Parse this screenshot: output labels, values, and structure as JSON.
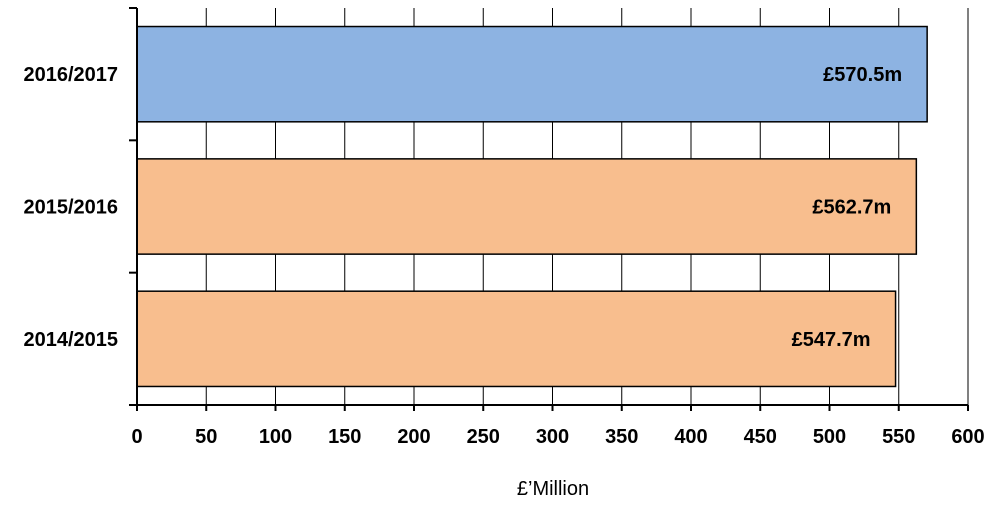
{
  "chart_data": {
    "type": "bar",
    "orientation": "horizontal",
    "categories": [
      "2014/2015",
      "2015/2016",
      "2016/2017"
    ],
    "values": [
      547.7,
      562.7,
      570.5
    ],
    "value_labels": [
      "£547.7m",
      "£562.7m",
      "£570.5m"
    ],
    "bar_colors": [
      "#f8be8e",
      "#f8be8e",
      "#8db3e2"
    ],
    "xlabel": "£’Million",
    "ylabel": "",
    "title": "",
    "xlim": [
      0,
      600
    ],
    "x_ticks": [
      0,
      50,
      100,
      150,
      200,
      250,
      300,
      350,
      400,
      450,
      500,
      550,
      600
    ],
    "grid": "vertical",
    "legend": "none"
  }
}
